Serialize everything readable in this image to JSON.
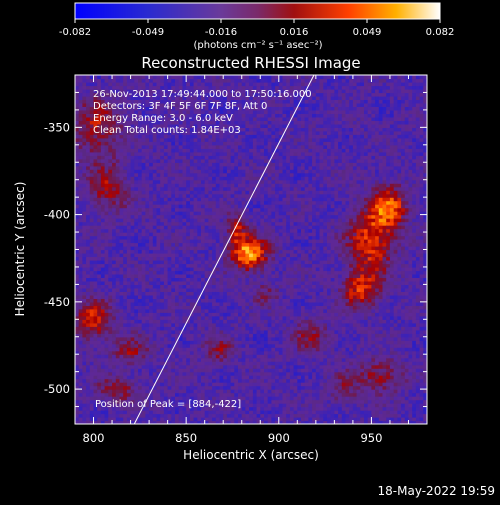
{
  "chart_data": {
    "type": "heatmap",
    "title": "Reconstructed RHESSI Image",
    "xlabel": "Heliocentric X (arcsec)",
    "ylabel": "Heliocentric Y (arcsec)",
    "xlim": [
      790,
      980
    ],
    "ylim": [
      -520,
      -320
    ],
    "x_ticks": [
      800,
      850,
      900,
      950
    ],
    "y_ticks": [
      -350,
      -400,
      -450,
      -500
    ],
    "colorbar": {
      "ticks": [
        "-0.082",
        "-0.049",
        "-0.016",
        "0.016",
        "0.049",
        "0.082"
      ],
      "range": [
        -0.082,
        0.082
      ],
      "unit_label": "(photons cm⁻² s⁻¹ asec⁻²)"
    },
    "annotations": [
      "26-Nov-2013 17:49:44.000 to 17:50:16.000",
      "Detectors: 3F 4F 5F 6F 7F 8F, Att 0",
      "Energy Range: 3.0 - 6.0 keV",
      "Clean    Total counts: 1.84E+03"
    ],
    "peak_label": "Position of Peak = [884,-422]",
    "peak": [
      884,
      -422
    ],
    "limb_line": [
      [
        822,
        -520
      ],
      [
        919,
        -320
      ]
    ],
    "sources": [
      {
        "x": 884,
        "y": -422,
        "amp": 1.0,
        "sx": 7,
        "sy": 7
      },
      {
        "x": 877,
        "y": -408,
        "amp": 0.55,
        "sx": 4,
        "sy": 6
      },
      {
        "x": 950,
        "y": -415,
        "amp": 0.72,
        "sx": 9,
        "sy": 14
      },
      {
        "x": 960,
        "y": -395,
        "amp": 0.68,
        "sx": 7,
        "sy": 9
      },
      {
        "x": 944,
        "y": -443,
        "amp": 0.62,
        "sx": 7,
        "sy": 8
      },
      {
        "x": 802,
        "y": -350,
        "amp": 0.55,
        "sx": 9,
        "sy": 12
      },
      {
        "x": 808,
        "y": -385,
        "amp": 0.5,
        "sx": 8,
        "sy": 10
      },
      {
        "x": 800,
        "y": -460,
        "amp": 0.65,
        "sx": 7,
        "sy": 8
      },
      {
        "x": 820,
        "y": -478,
        "amp": 0.45,
        "sx": 7,
        "sy": 6
      },
      {
        "x": 812,
        "y": -500,
        "amp": 0.45,
        "sx": 8,
        "sy": 5
      },
      {
        "x": 868,
        "y": -478,
        "amp": 0.4,
        "sx": 6,
        "sy": 6
      },
      {
        "x": 918,
        "y": -470,
        "amp": 0.4,
        "sx": 7,
        "sy": 7
      },
      {
        "x": 955,
        "y": -492,
        "amp": 0.5,
        "sx": 9,
        "sy": 7
      },
      {
        "x": 935,
        "y": -500,
        "amp": 0.35,
        "sx": 6,
        "sy": 6
      },
      {
        "x": 893,
        "y": -445,
        "amp": 0.3,
        "sx": 5,
        "sy": 5
      }
    ],
    "background_level": -0.25,
    "grid": false
  },
  "footer": {
    "date": "18-May-2022 19:59"
  }
}
